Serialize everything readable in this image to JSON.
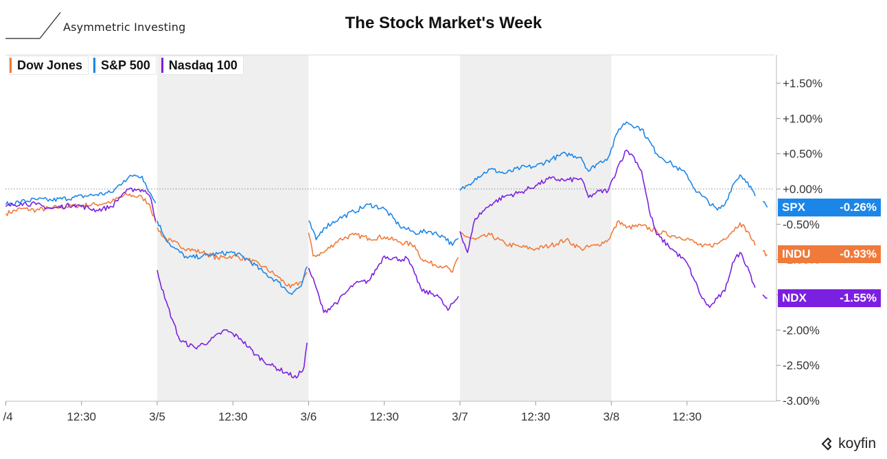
{
  "header": {
    "logo_text": "Asymmetric Investing",
    "title": "The Stock Market's Week",
    "brand": "koyfin"
  },
  "chart_data": {
    "type": "line",
    "title": "The Stock Market's Week",
    "ylabel": "",
    "xlabel": "",
    "ylim": [
      -3.0,
      1.5
    ],
    "y_ticks": [
      "+1.50%",
      "+1.00%",
      "+0.50%",
      "+0.00%",
      "-0.50%",
      "-1.00%",
      "-1.50%",
      "-2.00%",
      "-2.50%",
      "-3.00%"
    ],
    "y_tick_values": [
      1.5,
      1.0,
      0.5,
      0.0,
      -0.5,
      -1.0,
      -1.5,
      -2.0,
      -2.5,
      -3.0
    ],
    "x_ticks": [
      "/4",
      "12:30",
      "3/5",
      "12:30",
      "3/6",
      "12:30",
      "3/7",
      "12:30",
      "3/8",
      "12:30"
    ],
    "x_tick_values": [
      0,
      0.5,
      1,
      1.5,
      2,
      2.5,
      3,
      3.5,
      4,
      4.5
    ],
    "x_range": [
      0,
      5.05
    ],
    "shaded_days": [
      [
        1,
        2
      ],
      [
        3,
        4
      ]
    ],
    "zero_line": true,
    "legend_position": "top-left",
    "series": [
      {
        "name": "Dow Jones",
        "ticker": "INDU",
        "label": "-0.93%",
        "color": "#f07a3a",
        "points": [
          [
            0,
            -0.35
          ],
          [
            0.1,
            -0.28
          ],
          [
            0.2,
            -0.3
          ],
          [
            0.3,
            -0.27
          ],
          [
            0.45,
            -0.24
          ],
          [
            0.6,
            -0.22
          ],
          [
            0.7,
            -0.18
          ],
          [
            0.8,
            -0.08
          ],
          [
            0.9,
            -0.12
          ],
          [
            0.95,
            -0.22
          ],
          [
            0.99,
            -0.48
          ],
          [
            1.0,
            -0.55
          ],
          [
            1.05,
            -0.7
          ],
          [
            1.1,
            -0.75
          ],
          [
            1.2,
            -0.85
          ],
          [
            1.3,
            -0.9
          ],
          [
            1.4,
            -0.98
          ],
          [
            1.5,
            -0.95
          ],
          [
            1.6,
            -1.0
          ],
          [
            1.7,
            -1.1
          ],
          [
            1.8,
            -1.25
          ],
          [
            1.88,
            -1.4
          ],
          [
            1.95,
            -1.32
          ],
          [
            1.99,
            -1.18
          ],
          [
            2.0,
            -0.62
          ],
          [
            2.03,
            -0.95
          ],
          [
            2.1,
            -0.9
          ],
          [
            2.2,
            -0.72
          ],
          [
            2.3,
            -0.65
          ],
          [
            2.4,
            -0.7
          ],
          [
            2.5,
            -0.68
          ],
          [
            2.6,
            -0.75
          ],
          [
            2.7,
            -0.8
          ],
          [
            2.75,
            -1.0
          ],
          [
            2.8,
            -1.05
          ],
          [
            2.9,
            -1.1
          ],
          [
            2.95,
            -1.18
          ],
          [
            2.99,
            -0.97
          ],
          [
            3.0,
            -0.62
          ],
          [
            3.05,
            -0.68
          ],
          [
            3.1,
            -0.72
          ],
          [
            3.2,
            -0.65
          ],
          [
            3.3,
            -0.78
          ],
          [
            3.4,
            -0.82
          ],
          [
            3.5,
            -0.85
          ],
          [
            3.6,
            -0.8
          ],
          [
            3.7,
            -0.72
          ],
          [
            3.8,
            -0.85
          ],
          [
            3.9,
            -0.8
          ],
          [
            3.98,
            -0.72
          ],
          [
            4.05,
            -0.45
          ],
          [
            4.1,
            -0.55
          ],
          [
            4.2,
            -0.52
          ],
          [
            4.3,
            -0.6
          ],
          [
            4.4,
            -0.66
          ],
          [
            4.5,
            -0.7
          ],
          [
            4.6,
            -0.82
          ],
          [
            4.7,
            -0.78
          ],
          [
            4.8,
            -0.6
          ],
          [
            4.85,
            -0.48
          ],
          [
            4.9,
            -0.6
          ],
          [
            4.95,
            -0.8
          ],
          [
            5.0,
            -0.88
          ],
          [
            5.03,
            -0.93
          ]
        ]
      },
      {
        "name": "S&P 500",
        "ticker": "SPX",
        "label": "-0.26%",
        "color": "#1b86e8",
        "points": [
          [
            0,
            -0.22
          ],
          [
            0.1,
            -0.18
          ],
          [
            0.2,
            -0.15
          ],
          [
            0.3,
            -0.16
          ],
          [
            0.45,
            -0.12
          ],
          [
            0.6,
            -0.08
          ],
          [
            0.7,
            -0.05
          ],
          [
            0.78,
            0.12
          ],
          [
            0.85,
            0.2
          ],
          [
            0.9,
            0.18
          ],
          [
            0.95,
            -0.05
          ],
          [
            0.99,
            -0.2
          ],
          [
            1.0,
            -0.45
          ],
          [
            1.05,
            -0.68
          ],
          [
            1.1,
            -0.82
          ],
          [
            1.2,
            -0.98
          ],
          [
            1.3,
            -0.95
          ],
          [
            1.4,
            -0.92
          ],
          [
            1.5,
            -0.9
          ],
          [
            1.6,
            -1.0
          ],
          [
            1.7,
            -1.18
          ],
          [
            1.8,
            -1.32
          ],
          [
            1.88,
            -1.48
          ],
          [
            1.95,
            -1.38
          ],
          [
            1.99,
            -1.1
          ],
          [
            2.0,
            -0.45
          ],
          [
            2.05,
            -0.72
          ],
          [
            2.1,
            -0.55
          ],
          [
            2.2,
            -0.42
          ],
          [
            2.3,
            -0.32
          ],
          [
            2.4,
            -0.22
          ],
          [
            2.5,
            -0.28
          ],
          [
            2.6,
            -0.52
          ],
          [
            2.7,
            -0.62
          ],
          [
            2.8,
            -0.6
          ],
          [
            2.9,
            -0.68
          ],
          [
            2.95,
            -0.8
          ],
          [
            2.99,
            -0.7
          ],
          [
            3.0,
            -0.02
          ],
          [
            3.05,
            0.05
          ],
          [
            3.1,
            0.15
          ],
          [
            3.2,
            0.28
          ],
          [
            3.3,
            0.22
          ],
          [
            3.4,
            0.3
          ],
          [
            3.5,
            0.32
          ],
          [
            3.6,
            0.42
          ],
          [
            3.7,
            0.5
          ],
          [
            3.8,
            0.45
          ],
          [
            3.85,
            0.25
          ],
          [
            3.9,
            0.35
          ],
          [
            3.98,
            0.45
          ],
          [
            4.05,
            0.85
          ],
          [
            4.1,
            0.95
          ],
          [
            4.2,
            0.85
          ],
          [
            4.3,
            0.5
          ],
          [
            4.4,
            0.35
          ],
          [
            4.5,
            0.2
          ],
          [
            4.55,
            0.0
          ],
          [
            4.6,
            -0.1
          ],
          [
            4.7,
            -0.3
          ],
          [
            4.75,
            -0.22
          ],
          [
            4.8,
            0.05
          ],
          [
            4.85,
            0.2
          ],
          [
            4.9,
            0.1
          ],
          [
            4.95,
            -0.1
          ],
          [
            5.0,
            -0.18
          ],
          [
            5.03,
            -0.26
          ]
        ]
      },
      {
        "name": "Nasdaq 100",
        "ticker": "NDX",
        "label": "-1.55%",
        "color": "#7b1fe0",
        "points": [
          [
            0,
            -0.25
          ],
          [
            0.1,
            -0.2
          ],
          [
            0.2,
            -0.22
          ],
          [
            0.3,
            -0.28
          ],
          [
            0.45,
            -0.22
          ],
          [
            0.6,
            -0.3
          ],
          [
            0.7,
            -0.25
          ],
          [
            0.78,
            -0.05
          ],
          [
            0.85,
            0.0
          ],
          [
            0.92,
            -0.02
          ],
          [
            0.96,
            -0.15
          ],
          [
            0.99,
            -0.45
          ],
          [
            1.0,
            -1.15
          ],
          [
            1.05,
            -1.55
          ],
          [
            1.1,
            -1.85
          ],
          [
            1.15,
            -2.15
          ],
          [
            1.25,
            -2.25
          ],
          [
            1.35,
            -2.15
          ],
          [
            1.45,
            -2.0
          ],
          [
            1.55,
            -2.12
          ],
          [
            1.65,
            -2.35
          ],
          [
            1.75,
            -2.5
          ],
          [
            1.85,
            -2.6
          ],
          [
            1.92,
            -2.68
          ],
          [
            1.97,
            -2.52
          ],
          [
            1.99,
            -2.18
          ],
          [
            2.0,
            -1.12
          ],
          [
            2.05,
            -1.4
          ],
          [
            2.1,
            -1.75
          ],
          [
            2.2,
            -1.58
          ],
          [
            2.3,
            -1.35
          ],
          [
            2.4,
            -1.3
          ],
          [
            2.5,
            -0.95
          ],
          [
            2.6,
            -1.0
          ],
          [
            2.65,
            -0.98
          ],
          [
            2.7,
            -1.2
          ],
          [
            2.75,
            -1.45
          ],
          [
            2.85,
            -1.5
          ],
          [
            2.92,
            -1.72
          ],
          [
            2.99,
            -1.52
          ],
          [
            3.0,
            -0.6
          ],
          [
            3.05,
            -0.9
          ],
          [
            3.1,
            -0.42
          ],
          [
            3.2,
            -0.22
          ],
          [
            3.3,
            -0.1
          ],
          [
            3.4,
            -0.05
          ],
          [
            3.5,
            0.05
          ],
          [
            3.6,
            0.15
          ],
          [
            3.7,
            0.12
          ],
          [
            3.8,
            0.15
          ],
          [
            3.85,
            -0.12
          ],
          [
            3.9,
            -0.05
          ],
          [
            3.98,
            -0.02
          ],
          [
            4.05,
            0.35
          ],
          [
            4.1,
            0.55
          ],
          [
            4.15,
            0.45
          ],
          [
            4.2,
            0.25
          ],
          [
            4.25,
            -0.3
          ],
          [
            4.3,
            -0.65
          ],
          [
            4.4,
            -0.85
          ],
          [
            4.5,
            -1.05
          ],
          [
            4.55,
            -1.3
          ],
          [
            4.6,
            -1.55
          ],
          [
            4.65,
            -1.68
          ],
          [
            4.7,
            -1.55
          ],
          [
            4.75,
            -1.45
          ],
          [
            4.8,
            -1.05
          ],
          [
            4.85,
            -0.9
          ],
          [
            4.9,
            -1.1
          ],
          [
            4.95,
            -1.4
          ],
          [
            5.0,
            -1.5
          ],
          [
            5.03,
            -1.55
          ]
        ]
      }
    ]
  }
}
